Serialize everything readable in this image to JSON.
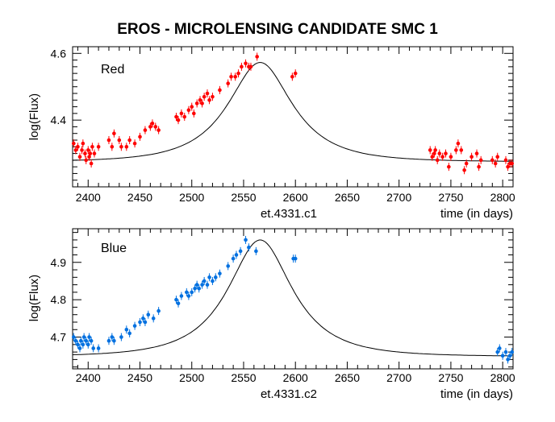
{
  "title": "EROS  -  MICROLENSING CANDIDATE SMC 1",
  "chart_data": [
    {
      "type": "scatter",
      "panel_label": "Red",
      "xlabel": "time (in days)",
      "ylabel": "log(Flux)",
      "subtitle": "et.4331.c1",
      "xlim": [
        2385,
        2810
      ],
      "ylim": [
        4.2,
        4.62
      ],
      "x_ticks": [
        2400,
        2450,
        2500,
        2550,
        2600,
        2650,
        2700,
        2750,
        2800
      ],
      "y_ticks": [
        4.4,
        4.6
      ],
      "marker_color": "#ff0000",
      "fit": {
        "t0": 2566,
        "base": 4.275,
        "amp": 0.298,
        "u": 0.58,
        "tau": 58
      },
      "points": [
        [
          2386,
          4.33
        ],
        [
          2388,
          4.31
        ],
        [
          2390,
          4.32
        ],
        [
          2392,
          4.29
        ],
        [
          2394,
          4.31
        ],
        [
          2395,
          4.33
        ],
        [
          2397,
          4.3
        ],
        [
          2398,
          4.28
        ],
        [
          2400,
          4.31
        ],
        [
          2401,
          4.29
        ],
        [
          2402,
          4.3
        ],
        [
          2403,
          4.27
        ],
        [
          2404,
          4.32
        ],
        [
          2406,
          4.3
        ],
        [
          2410,
          4.32
        ],
        [
          2420,
          4.34
        ],
        [
          2423,
          4.32
        ],
        [
          2425,
          4.36
        ],
        [
          2430,
          4.34
        ],
        [
          2432,
          4.32
        ],
        [
          2437,
          4.32
        ],
        [
          2440,
          4.34
        ],
        [
          2445,
          4.33
        ],
        [
          2450,
          4.35
        ],
        [
          2455,
          4.37
        ],
        [
          2460,
          4.38
        ],
        [
          2462,
          4.39
        ],
        [
          2465,
          4.38
        ],
        [
          2468,
          4.37
        ],
        [
          2485,
          4.41
        ],
        [
          2487,
          4.4
        ],
        [
          2490,
          4.42
        ],
        [
          2493,
          4.41
        ],
        [
          2497,
          4.43
        ],
        [
          2500,
          4.44
        ],
        [
          2502,
          4.42
        ],
        [
          2505,
          4.45
        ],
        [
          2508,
          4.46
        ],
        [
          2510,
          4.45
        ],
        [
          2512,
          4.47
        ],
        [
          2515,
          4.48
        ],
        [
          2517,
          4.46
        ],
        [
          2520,
          4.47
        ],
        [
          2527,
          4.49
        ],
        [
          2535,
          4.51
        ],
        [
          2538,
          4.53
        ],
        [
          2542,
          4.53
        ],
        [
          2545,
          4.54
        ],
        [
          2548,
          4.56
        ],
        [
          2552,
          4.57
        ],
        [
          2555,
          4.56
        ],
        [
          2557,
          4.56
        ],
        [
          2563,
          4.59
        ],
        [
          2597,
          4.53
        ],
        [
          2600,
          4.54
        ],
        [
          2730,
          4.31
        ],
        [
          2732,
          4.29
        ],
        [
          2734,
          4.3
        ],
        [
          2735,
          4.31
        ],
        [
          2737,
          4.28
        ],
        [
          2739,
          4.3
        ],
        [
          2742,
          4.29
        ],
        [
          2745,
          4.3
        ],
        [
          2748,
          4.26
        ],
        [
          2750,
          4.29
        ],
        [
          2755,
          4.31
        ],
        [
          2757,
          4.33
        ],
        [
          2760,
          4.31
        ],
        [
          2763,
          4.25
        ],
        [
          2765,
          4.27
        ],
        [
          2770,
          4.29
        ],
        [
          2775,
          4.3
        ],
        [
          2777,
          4.26
        ],
        [
          2779,
          4.28
        ],
        [
          2790,
          4.28
        ],
        [
          2793,
          4.27
        ],
        [
          2795,
          4.29
        ],
        [
          2803,
          4.28
        ],
        [
          2805,
          4.26
        ],
        [
          2807,
          4.27
        ],
        [
          2809,
          4.27
        ]
      ]
    },
    {
      "type": "scatter",
      "panel_label": "Blue",
      "xlabel": "time (in days)",
      "ylabel": "log(Flux)",
      "subtitle": "et.4331.c2",
      "xlim": [
        2385,
        2810
      ],
      "ylim": [
        4.615,
        4.99
      ],
      "x_ticks": [
        2400,
        2450,
        2500,
        2550,
        2600,
        2650,
        2700,
        2750,
        2800
      ],
      "y_ticks": [
        4.7,
        4.8,
        4.9
      ],
      "marker_color": "#0070e0",
      "fit": {
        "t0": 2566,
        "base": 4.648,
        "amp": 0.312,
        "u": 0.58,
        "tau": 58
      },
      "points": [
        [
          2386,
          4.7
        ],
        [
          2388,
          4.69
        ],
        [
          2390,
          4.68
        ],
        [
          2392,
          4.67
        ],
        [
          2393,
          4.69
        ],
        [
          2395,
          4.68
        ],
        [
          2396,
          4.7
        ],
        [
          2398,
          4.69
        ],
        [
          2400,
          4.68
        ],
        [
          2401,
          4.7
        ],
        [
          2403,
          4.69
        ],
        [
          2405,
          4.67
        ],
        [
          2410,
          4.67
        ],
        [
          2420,
          4.69
        ],
        [
          2423,
          4.7
        ],
        [
          2425,
          4.69
        ],
        [
          2432,
          4.7
        ],
        [
          2437,
          4.72
        ],
        [
          2440,
          4.71
        ],
        [
          2445,
          4.73
        ],
        [
          2450,
          4.74
        ],
        [
          2453,
          4.75
        ],
        [
          2455,
          4.74
        ],
        [
          2458,
          4.76
        ],
        [
          2463,
          4.75
        ],
        [
          2468,
          4.77
        ],
        [
          2485,
          4.8
        ],
        [
          2487,
          4.79
        ],
        [
          2490,
          4.81
        ],
        [
          2495,
          4.82
        ],
        [
          2497,
          4.81
        ],
        [
          2500,
          4.82
        ],
        [
          2503,
          4.83
        ],
        [
          2505,
          4.84
        ],
        [
          2507,
          4.83
        ],
        [
          2510,
          4.84
        ],
        [
          2512,
          4.85
        ],
        [
          2515,
          4.84
        ],
        [
          2517,
          4.86
        ],
        [
          2520,
          4.85
        ],
        [
          2523,
          4.86
        ],
        [
          2527,
          4.87
        ],
        [
          2535,
          4.89
        ],
        [
          2540,
          4.91
        ],
        [
          2543,
          4.92
        ],
        [
          2547,
          4.93
        ],
        [
          2552,
          4.96
        ],
        [
          2555,
          4.94
        ],
        [
          2562,
          4.93
        ],
        [
          2598,
          4.91
        ],
        [
          2600,
          4.91
        ],
        [
          2795,
          4.66
        ],
        [
          2797,
          4.67
        ],
        [
          2800,
          4.65
        ],
        [
          2803,
          4.66
        ],
        [
          2805,
          4.64
        ],
        [
          2807,
          4.65
        ],
        [
          2809,
          4.66
        ]
      ]
    }
  ]
}
